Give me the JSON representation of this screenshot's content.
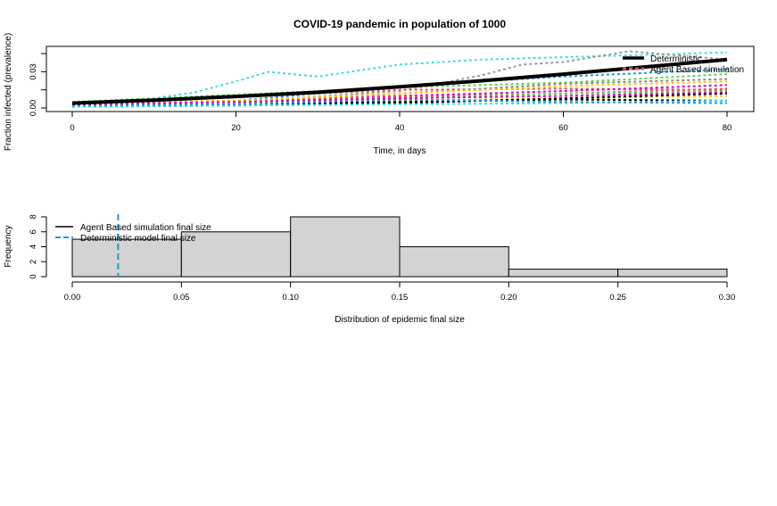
{
  "title": "COVID-19 pandemic in population of 1000",
  "chart_data": [
    {
      "type": "line",
      "ylabel": "Fraction infected (prevalence)",
      "xlabel": "Time, in days",
      "xlim": [
        0,
        80
      ],
      "ylim": [
        0,
        0.048
      ],
      "x_ticks": [
        "0",
        "20",
        "40",
        "60",
        "80"
      ],
      "y_ticks": [
        "0.00",
        "0.03"
      ],
      "legend": {
        "placement": "top-right",
        "entries": [
          "Deterministic",
          "Agent Based simulation"
        ]
      },
      "deterministic": {
        "name": "Deterministic",
        "color": "#000000",
        "x": [
          0,
          10,
          20,
          30,
          40,
          50,
          60,
          70,
          80
        ],
        "y": [
          0.004,
          0.0065,
          0.0095,
          0.013,
          0.0175,
          0.0225,
          0.028,
          0.034,
          0.04
        ]
      },
      "agent_series": [
        {
          "color": "#4ad9d9",
          "x": [
            0,
            10,
            15,
            20,
            24,
            30,
            40,
            50,
            60,
            70,
            80
          ],
          "y": [
            0.003,
            0.008,
            0.013,
            0.022,
            0.03,
            0.026,
            0.036,
            0.04,
            0.042,
            0.044,
            0.046
          ]
        },
        {
          "color": "#9a9a9a",
          "x": [
            0,
            20,
            40,
            50,
            55,
            60,
            68,
            80
          ],
          "y": [
            0.002,
            0.005,
            0.014,
            0.027,
            0.036,
            0.038,
            0.047,
            0.04
          ]
        },
        {
          "color": "#2196d6",
          "x": [
            0,
            20,
            40,
            60,
            80
          ],
          "y": [
            0.003,
            0.006,
            0.018,
            0.026,
            0.032
          ]
        },
        {
          "color": "#df536b",
          "x": [
            0,
            20,
            40,
            60,
            80
          ],
          "y": [
            0.004,
            0.009,
            0.015,
            0.016,
            0.015
          ]
        },
        {
          "color": "#61d04f",
          "x": [
            0,
            20,
            40,
            60,
            80
          ],
          "y": [
            0.005,
            0.011,
            0.017,
            0.021,
            0.028
          ]
        },
        {
          "color": "#cd0bbc",
          "x": [
            0,
            20,
            40,
            60,
            80
          ],
          "y": [
            0.003,
            0.005,
            0.01,
            0.014,
            0.019
          ]
        },
        {
          "color": "#f5c710",
          "x": [
            0,
            20,
            40,
            60,
            80
          ],
          "y": [
            0.002,
            0.003,
            0.006,
            0.008,
            0.01
          ]
        },
        {
          "color": "#000000",
          "x": [
            0,
            20,
            40,
            60,
            80
          ],
          "y": [
            0.001,
            0.002,
            0.004,
            0.008,
            0.012
          ]
        },
        {
          "color": "#8a8a8a",
          "x": [
            0,
            20,
            40,
            60,
            80
          ],
          "y": [
            0.002,
            0.004,
            0.012,
            0.02,
            0.024
          ]
        },
        {
          "color": "#df536b",
          "x": [
            0,
            20,
            40,
            60,
            80
          ],
          "y": [
            0.004,
            0.006,
            0.009,
            0.012,
            0.016
          ]
        },
        {
          "color": "#000000",
          "x": [
            0,
            20,
            40,
            60,
            80
          ],
          "y": [
            0.001,
            0.003,
            0.005,
            0.007,
            0.006
          ]
        },
        {
          "color": "#61d04f",
          "x": [
            0,
            20,
            40,
            60,
            80
          ],
          "y": [
            0.003,
            0.004,
            0.008,
            0.012,
            0.014
          ]
        },
        {
          "color": "#28e2e5",
          "x": [
            0,
            20,
            40,
            60,
            80
          ],
          "y": [
            0.001,
            0.002,
            0.003,
            0.004,
            0.006
          ]
        },
        {
          "color": "#2196d6",
          "x": [
            0,
            20,
            40,
            60,
            80
          ],
          "y": [
            0.002,
            0.003,
            0.007,
            0.005,
            0.004
          ]
        },
        {
          "color": "#f5c710",
          "x": [
            0,
            20,
            40,
            60,
            80
          ],
          "y": [
            0.004,
            0.006,
            0.012,
            0.018,
            0.022
          ]
        },
        {
          "color": "#cd0bbc",
          "x": [
            0,
            20,
            40,
            60,
            80
          ],
          "y": [
            0.003,
            0.005,
            0.008,
            0.01,
            0.013
          ]
        }
      ]
    },
    {
      "type": "bar",
      "subtype": "histogram",
      "ylabel": "Frequency",
      "xlabel": "Distribution of epidemic final size",
      "bins": [
        {
          "from": 0.0,
          "to": 0.05,
          "count": 5
        },
        {
          "from": 0.05,
          "to": 0.1,
          "count": 6
        },
        {
          "from": 0.1,
          "to": 0.15,
          "count": 8
        },
        {
          "from": 0.15,
          "to": 0.2,
          "count": 4
        },
        {
          "from": 0.2,
          "to": 0.25,
          "count": 1
        },
        {
          "from": 0.25,
          "to": 0.3,
          "count": 1
        }
      ],
      "xlim": [
        0,
        0.3
      ],
      "ylim": [
        0,
        8
      ],
      "x_ticks": [
        "0.00",
        "0.05",
        "0.10",
        "0.15",
        "0.20",
        "0.25",
        "0.30"
      ],
      "y_ticks": [
        "0",
        "2",
        "4",
        "6",
        "8"
      ],
      "bar_color": "#d3d3d3",
      "deterministic_final_size": 0.021,
      "deterministic_line_color": "#2196d6",
      "legend": {
        "placement": "top-left",
        "entries": [
          "Agent Based simulation final size",
          "Deterministic model final size"
        ]
      }
    }
  ]
}
